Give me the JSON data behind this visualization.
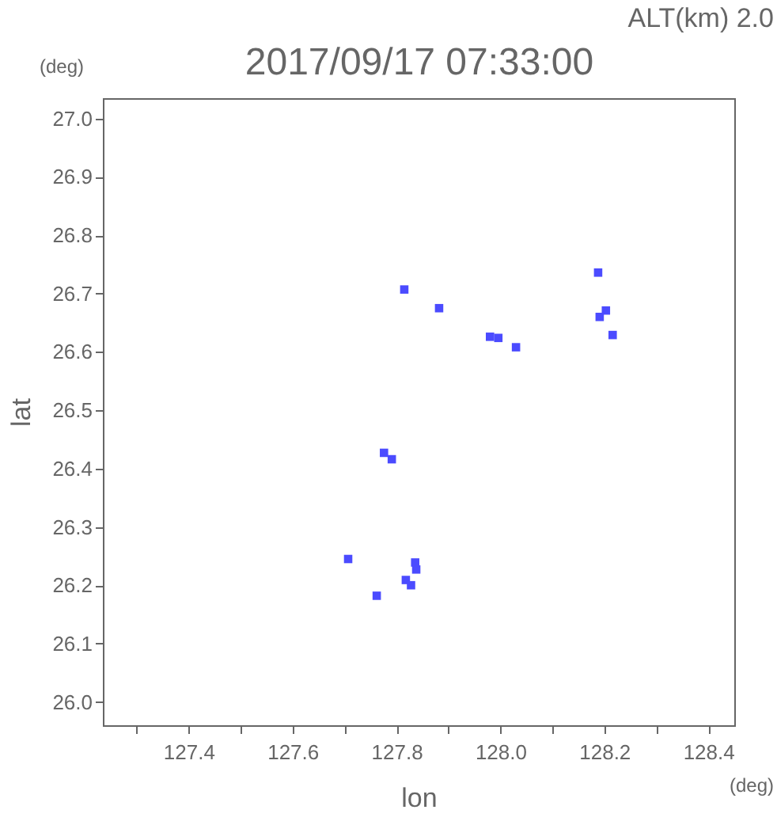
{
  "chart_data": {
    "type": "scatter",
    "title": "2017/09/17 07:33:00",
    "subtitle": "ALT(km) 2.0",
    "xlabel": "lon",
    "ylabel": "lat",
    "annotations": [
      "(deg)",
      "(deg)"
    ],
    "x": [
      127.815,
      127.882,
      127.98,
      127.996,
      128.03,
      128.188,
      128.203,
      128.191,
      128.216,
      127.776,
      127.791,
      127.707,
      127.836,
      127.838,
      127.818,
      127.828,
      127.762
    ],
    "values": [
      26.707,
      26.675,
      26.626,
      26.624,
      26.608,
      26.736,
      26.671,
      26.66,
      26.629,
      26.427,
      26.416,
      26.245,
      26.239,
      26.227,
      26.209,
      26.2,
      26.182
    ],
    "color": "#4b4bff",
    "marker": "square",
    "grid": false,
    "xlim": [
      127.235,
      128.45
    ],
    "ylim": [
      25.96,
      27.035
    ],
    "xticks": [
      {
        "value": 127.3,
        "label": null
      },
      127.4,
      {
        "value": 127.5,
        "label": null
      },
      127.6,
      {
        "value": 127.7,
        "label": null
      },
      127.8,
      {
        "value": 127.9,
        "label": null
      },
      {
        "value": 128.0,
        "label": "128.0"
      },
      {
        "value": 128.1,
        "label": null
      },
      128.2,
      {
        "value": 128.3,
        "label": null
      },
      128.4
    ],
    "yticks": [
      {
        "value": 26.0,
        "label": "26.0"
      },
      26.1,
      26.2,
      26.3,
      26.4,
      26.5,
      26.6,
      26.7,
      26.8,
      26.9,
      {
        "value": 27.0,
        "label": "27.0"
      }
    ]
  }
}
